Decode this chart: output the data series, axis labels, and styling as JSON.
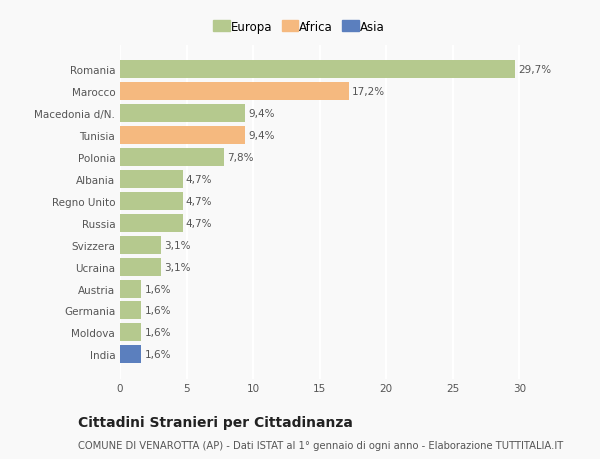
{
  "categories": [
    "Romania",
    "Marocco",
    "Macedonia d/N.",
    "Tunisia",
    "Polonia",
    "Albania",
    "Regno Unito",
    "Russia",
    "Svizzera",
    "Ucraina",
    "Austria",
    "Germania",
    "Moldova",
    "India"
  ],
  "values": [
    29.7,
    17.2,
    9.4,
    9.4,
    7.8,
    4.7,
    4.7,
    4.7,
    3.1,
    3.1,
    1.6,
    1.6,
    1.6,
    1.6
  ],
  "labels": [
    "29,7%",
    "17,2%",
    "9,4%",
    "9,4%",
    "7,8%",
    "4,7%",
    "4,7%",
    "4,7%",
    "3,1%",
    "3,1%",
    "1,6%",
    "1,6%",
    "1,6%",
    "1,6%"
  ],
  "continents": [
    "Europa",
    "Africa",
    "Europa",
    "Africa",
    "Europa",
    "Europa",
    "Europa",
    "Europa",
    "Europa",
    "Europa",
    "Europa",
    "Europa",
    "Europa",
    "Asia"
  ],
  "colors": {
    "Europa": "#b5c98e",
    "Africa": "#f5b97f",
    "Asia": "#5b7fbe"
  },
  "xlim": [
    0,
    32
  ],
  "xticks": [
    0,
    5,
    10,
    15,
    20,
    25,
    30
  ],
  "title": "Cittadini Stranieri per Cittadinanza",
  "subtitle": "COMUNE DI VENAROTTA (AP) - Dati ISTAT al 1° gennaio di ogni anno - Elaborazione TUTTITALIA.IT",
  "background_color": "#f9f9f9",
  "grid_color": "#ffffff",
  "bar_height": 0.82,
  "label_fontsize": 7.5,
  "tick_fontsize": 7.5,
  "title_fontsize": 10,
  "subtitle_fontsize": 7.2
}
